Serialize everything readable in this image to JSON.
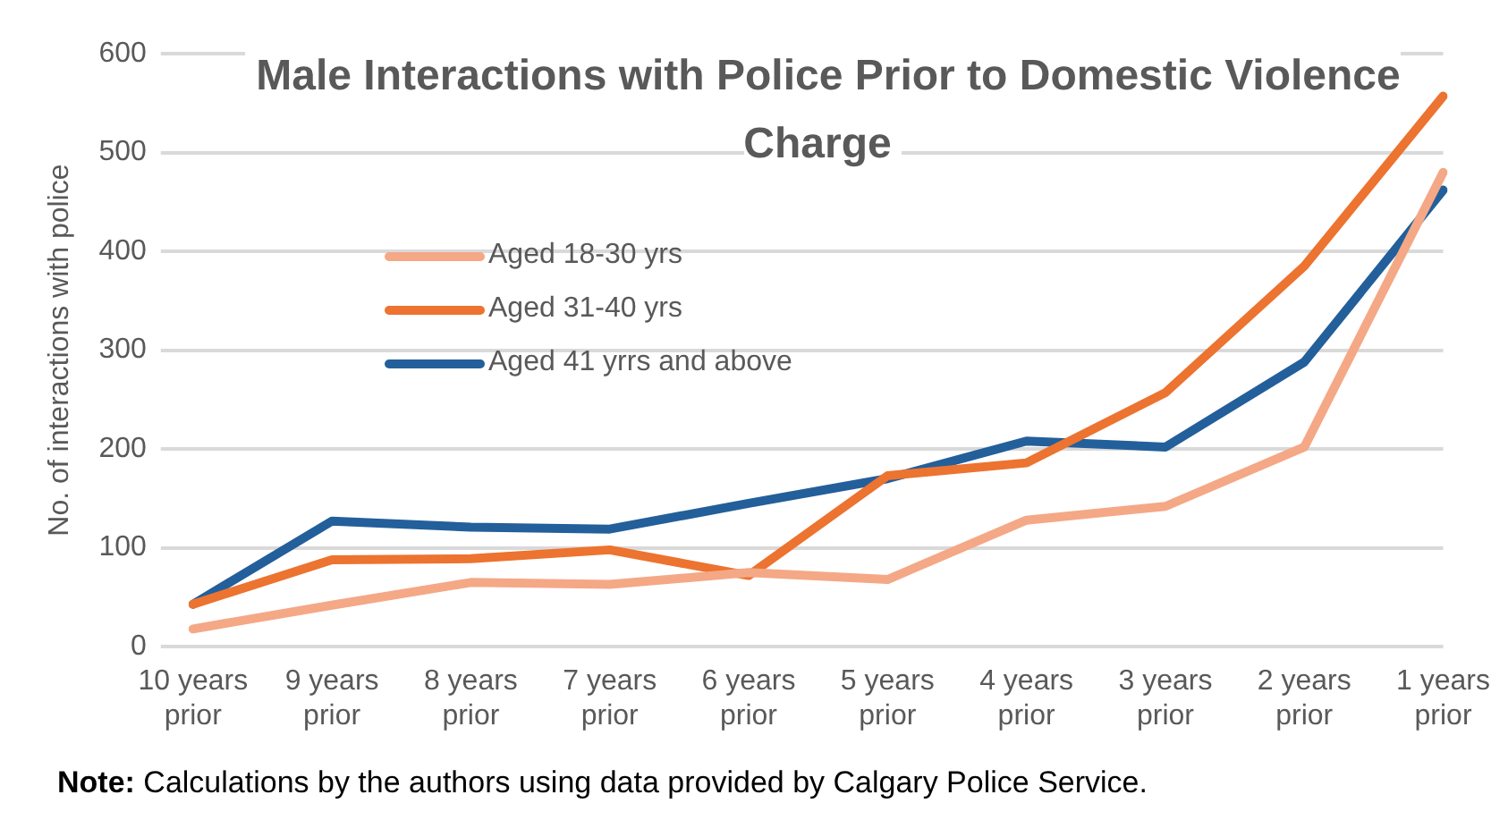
{
  "chart_data": {
    "type": "line",
    "title": "Male Interactions with Police Prior to Domestic Violence Charge",
    "ylabel": "No. of interactions with police",
    "categories": [
      "10 years\nprior",
      "9 years\nprior",
      "8 years\nprior",
      "7 years\nprior",
      "6 years\nprior",
      "5 years\nprior",
      "4 years\nprior",
      "3 years\nprior",
      "2 years\nprior",
      "1 years\nprior"
    ],
    "series": [
      {
        "name": "Aged 18-30 yrs",
        "color": "#f4a886",
        "values": [
          18,
          42,
          65,
          63,
          75,
          68,
          128,
          142,
          202,
          480
        ]
      },
      {
        "name": "Aged 31-40 yrs",
        "color": "#ec7330",
        "values": [
          43,
          88,
          89,
          98,
          72,
          173,
          186,
          257,
          385,
          557
        ]
      },
      {
        "name": "Aged 41 yrrs and above",
        "color": "#235f9a",
        "values": [
          43,
          127,
          121,
          119,
          145,
          170,
          208,
          202,
          288,
          462
        ]
      }
    ],
    "ylim": [
      0,
      600
    ],
    "yticks": [
      0,
      100,
      200,
      300,
      400,
      500,
      600
    ],
    "grid": "y",
    "legend": "top left",
    "marker": "none",
    "line_style": "solid",
    "annotations": [
      "Note: Calculations by the authors using data provided by Calgary Police Service."
    ]
  }
}
